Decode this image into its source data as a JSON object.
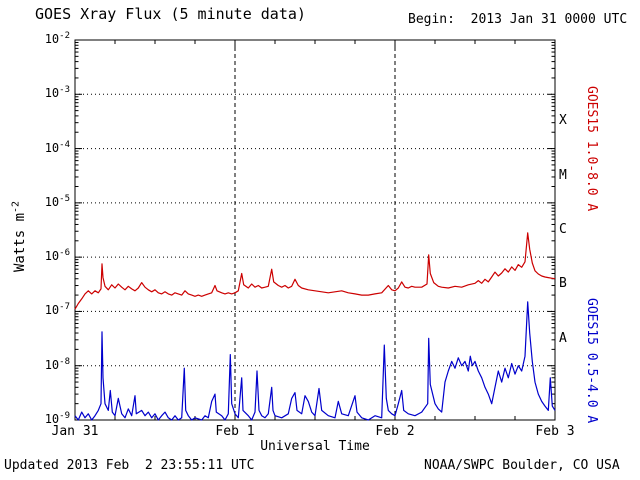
{
  "header": {
    "title": "GOES Xray Flux (5 minute data)",
    "begin": "Begin:  2013 Jan 31 0000 UTC"
  },
  "footer": {
    "updated": "Updated 2013 Feb  2 23:55:11 UTC",
    "source": "NOAA/SWPC Boulder, CO USA"
  },
  "chart_data": {
    "type": "line",
    "title": "GOES Xray Flux (5 minute data)",
    "xlabel": "Universal Time",
    "ylabel": "Watts m^-2",
    "ylabel_base": "Watts m",
    "ylabel_exp": "-2",
    "x_unit": "hours since 2013 Jan 31 0000 UTC",
    "xlim": [
      0,
      72
    ],
    "ylim_exp": [
      -9,
      -2
    ],
    "y_scale": "log10",
    "grid": {
      "horizontal": "dotted at each decade",
      "vertical": "dashed at day boundaries"
    },
    "x_ticks": [
      {
        "t": 0,
        "label": "Jan 31"
      },
      {
        "t": 24,
        "label": "Feb 1"
      },
      {
        "t": 48,
        "label": "Feb 2"
      },
      {
        "t": 72,
        "label": "Feb 3"
      }
    ],
    "y_ticks_exp": [
      -2,
      -3,
      -4,
      -5,
      -6,
      -7,
      -8,
      -9
    ],
    "flare_classes": [
      {
        "label": "X",
        "log_center": -3.5
      },
      {
        "label": "M",
        "log_center": -4.5
      },
      {
        "label": "C",
        "log_center": -5.5
      },
      {
        "label": "B",
        "log_center": -6.5
      },
      {
        "label": "A",
        "log_center": -7.5
      }
    ],
    "series": [
      {
        "name": "GOES15 1.0-8.0 A",
        "color": "#cc0000",
        "points": [
          [
            0,
            1.1e-07
          ],
          [
            0.5,
            1.4e-07
          ],
          [
            1,
            1.7e-07
          ],
          [
            1.5,
            2.1e-07
          ],
          [
            2,
            2.4e-07
          ],
          [
            2.5,
            2.1e-07
          ],
          [
            3,
            2.4e-07
          ],
          [
            3.5,
            2.2e-07
          ],
          [
            3.9,
            2.6e-07
          ],
          [
            4.05,
            7.5e-07
          ],
          [
            4.2,
            4.2e-07
          ],
          [
            4.5,
            2.9e-07
          ],
          [
            5,
            2.5e-07
          ],
          [
            5.5,
            3.1e-07
          ],
          [
            6,
            2.7e-07
          ],
          [
            6.5,
            3.2e-07
          ],
          [
            7,
            2.8e-07
          ],
          [
            7.5,
            2.5e-07
          ],
          [
            8,
            2.9e-07
          ],
          [
            8.5,
            2.6e-07
          ],
          [
            9,
            2.4e-07
          ],
          [
            9.5,
            2.7e-07
          ],
          [
            10,
            3.4e-07
          ],
          [
            10.5,
            2.8e-07
          ],
          [
            11,
            2.5e-07
          ],
          [
            11.5,
            2.3e-07
          ],
          [
            12,
            2.5e-07
          ],
          [
            12.5,
            2.2e-07
          ],
          [
            13,
            2.1e-07
          ],
          [
            13.5,
            2.3e-07
          ],
          [
            14,
            2.1e-07
          ],
          [
            14.5,
            2e-07
          ],
          [
            15,
            2.2e-07
          ],
          [
            15.5,
            2.1e-07
          ],
          [
            16,
            2e-07
          ],
          [
            16.5,
            2.4e-07
          ],
          [
            17,
            2.1e-07
          ],
          [
            17.5,
            2e-07
          ],
          [
            18,
            1.9e-07
          ],
          [
            18.5,
            2e-07
          ],
          [
            19,
            1.9e-07
          ],
          [
            19.5,
            2e-07
          ],
          [
            20,
            2.1e-07
          ],
          [
            20.5,
            2.2e-07
          ],
          [
            21,
            3e-07
          ],
          [
            21.3,
            2.4e-07
          ],
          [
            22,
            2.2e-07
          ],
          [
            22.5,
            2.1e-07
          ],
          [
            23,
            2.2e-07
          ],
          [
            23.5,
            2.1e-07
          ],
          [
            24,
            2.2e-07
          ],
          [
            24.5,
            2.4e-07
          ],
          [
            25,
            5e-07
          ],
          [
            25.3,
            3.1e-07
          ],
          [
            26,
            2.7e-07
          ],
          [
            26.5,
            3.2e-07
          ],
          [
            27,
            2.8e-07
          ],
          [
            27.5,
            3e-07
          ],
          [
            28,
            2.7e-07
          ],
          [
            28.5,
            2.8e-07
          ],
          [
            29,
            2.9e-07
          ],
          [
            29.5,
            6e-07
          ],
          [
            29.8,
            3.5e-07
          ],
          [
            30.5,
            3e-07
          ],
          [
            31,
            2.8e-07
          ],
          [
            31.5,
            3e-07
          ],
          [
            32,
            2.7e-07
          ],
          [
            32.5,
            2.9e-07
          ],
          [
            33,
            3.9e-07
          ],
          [
            33.5,
            3e-07
          ],
          [
            34,
            2.7e-07
          ],
          [
            35,
            2.5e-07
          ],
          [
            36,
            2.4e-07
          ],
          [
            37,
            2.3e-07
          ],
          [
            38,
            2.2e-07
          ],
          [
            39,
            2.3e-07
          ],
          [
            40,
            2.4e-07
          ],
          [
            41,
            2.2e-07
          ],
          [
            42,
            2.1e-07
          ],
          [
            43,
            2e-07
          ],
          [
            44,
            2e-07
          ],
          [
            45,
            2.1e-07
          ],
          [
            46,
            2.2e-07
          ],
          [
            47,
            3e-07
          ],
          [
            47.5,
            2.5e-07
          ],
          [
            48,
            2.4e-07
          ],
          [
            48.5,
            2.7e-07
          ],
          [
            49,
            3.5e-07
          ],
          [
            49.5,
            2.8e-07
          ],
          [
            50,
            2.7e-07
          ],
          [
            50.5,
            2.9e-07
          ],
          [
            51,
            2.8e-07
          ],
          [
            52,
            2.8e-07
          ],
          [
            52.8,
            3.2e-07
          ],
          [
            53.05,
            1.1e-06
          ],
          [
            53.3,
            5e-07
          ],
          [
            53.8,
            3.4e-07
          ],
          [
            54.5,
            2.9e-07
          ],
          [
            55,
            2.8e-07
          ],
          [
            56,
            2.7e-07
          ],
          [
            57,
            2.9e-07
          ],
          [
            58,
            2.8e-07
          ],
          [
            59,
            3.1e-07
          ],
          [
            60,
            3.3e-07
          ],
          [
            60.5,
            3.7e-07
          ],
          [
            61,
            3.3e-07
          ],
          [
            61.5,
            3.9e-07
          ],
          [
            62,
            3.5e-07
          ],
          [
            62.5,
            4.3e-07
          ],
          [
            63,
            5.3e-07
          ],
          [
            63.5,
            4.5e-07
          ],
          [
            64,
            5.1e-07
          ],
          [
            64.5,
            6.1e-07
          ],
          [
            65,
            5.3e-07
          ],
          [
            65.5,
            6.6e-07
          ],
          [
            66,
            5.7e-07
          ],
          [
            66.5,
            7.3e-07
          ],
          [
            67,
            6.5e-07
          ],
          [
            67.5,
            8.2e-07
          ],
          [
            67.9,
            2.8e-06
          ],
          [
            68.2,
            1.4e-06
          ],
          [
            68.6,
            7.8e-07
          ],
          [
            69,
            5.6e-07
          ],
          [
            69.5,
            4.9e-07
          ],
          [
            70,
            4.5e-07
          ],
          [
            70.5,
            4.3e-07
          ],
          [
            71,
            4.2e-07
          ],
          [
            71.5,
            4.1e-07
          ],
          [
            72,
            4e-07
          ]
        ]
      },
      {
        "name": "GOES15 0.5-4.0 A",
        "color": "#0000cc",
        "points": [
          [
            0,
            1.2e-09
          ],
          [
            0.5,
            1e-09
          ],
          [
            1,
            1.4e-09
          ],
          [
            1.5,
            1.1e-09
          ],
          [
            2,
            1.3e-09
          ],
          [
            2.5,
            1e-09
          ],
          [
            3,
            1.2e-09
          ],
          [
            3.5,
            1.5e-09
          ],
          [
            3.9,
            2e-09
          ],
          [
            4.05,
            4.2e-08
          ],
          [
            4.2,
            6e-09
          ],
          [
            4.5,
            2e-09
          ],
          [
            5,
            1.5e-09
          ],
          [
            5.3,
            3.5e-09
          ],
          [
            5.6,
            1.4e-09
          ],
          [
            6,
            1.2e-09
          ],
          [
            6.5,
            2.5e-09
          ],
          [
            7,
            1.3e-09
          ],
          [
            7.5,
            1.1e-09
          ],
          [
            8,
            1.6e-09
          ],
          [
            8.5,
            1.2e-09
          ],
          [
            9,
            2.8e-09
          ],
          [
            9.2,
            1.3e-09
          ],
          [
            10,
            1.5e-09
          ],
          [
            10.5,
            1.2e-09
          ],
          [
            11,
            1.4e-09
          ],
          [
            11.5,
            1.1e-09
          ],
          [
            12,
            1.3e-09
          ],
          [
            12.5,
            1e-09
          ],
          [
            13,
            1.2e-09
          ],
          [
            13.5,
            1.4e-09
          ],
          [
            14,
            1.1e-09
          ],
          [
            14.5,
            1e-09
          ],
          [
            15,
            1.2e-09
          ],
          [
            15.5,
            1e-09
          ],
          [
            16,
            1.1e-09
          ],
          [
            16.4,
            9e-09
          ],
          [
            16.6,
            1.5e-09
          ],
          [
            17,
            1.2e-09
          ],
          [
            17.5,
            1e-09
          ],
          [
            18,
            1.1e-09
          ],
          [
            19,
            1e-09
          ],
          [
            19.5,
            1.2e-09
          ],
          [
            20,
            1.1e-09
          ],
          [
            20.5,
            2.2e-09
          ],
          [
            21,
            3e-09
          ],
          [
            21.2,
            1.4e-09
          ],
          [
            22,
            1.2e-09
          ],
          [
            22.5,
            1e-09
          ],
          [
            23,
            1.3e-09
          ],
          [
            23.3,
            1.6e-08
          ],
          [
            23.5,
            2e-09
          ],
          [
            24,
            1.3e-09
          ],
          [
            24.5,
            1.1e-09
          ],
          [
            25,
            6e-09
          ],
          [
            25.2,
            1.5e-09
          ],
          [
            26,
            1.2e-09
          ],
          [
            26.5,
            1e-09
          ],
          [
            27,
            1.4e-09
          ],
          [
            27.3,
            8e-09
          ],
          [
            27.6,
            1.5e-09
          ],
          [
            28,
            1.2e-09
          ],
          [
            28.5,
            1.1e-09
          ],
          [
            29,
            1.3e-09
          ],
          [
            29.5,
            4e-09
          ],
          [
            29.7,
            1.5e-09
          ],
          [
            30,
            1.2e-09
          ],
          [
            31,
            1.1e-09
          ],
          [
            32,
            1.3e-09
          ],
          [
            32.5,
            2.5e-09
          ],
          [
            33,
            3.2e-09
          ],
          [
            33.3,
            1.5e-09
          ],
          [
            34,
            1.3e-09
          ],
          [
            34.5,
            2.8e-09
          ],
          [
            35,
            2.2e-09
          ],
          [
            35.5,
            1.4e-09
          ],
          [
            36,
            1.2e-09
          ],
          [
            36.6,
            3.8e-09
          ],
          [
            37,
            1.5e-09
          ],
          [
            38,
            1.2e-09
          ],
          [
            39,
            1.1e-09
          ],
          [
            39.5,
            2.2e-09
          ],
          [
            40,
            1.3e-09
          ],
          [
            41,
            1.2e-09
          ],
          [
            42,
            2.8e-09
          ],
          [
            42.3,
            1.4e-09
          ],
          [
            43,
            1.1e-09
          ],
          [
            44,
            1e-09
          ],
          [
            45,
            1.2e-09
          ],
          [
            46,
            1.1e-09
          ],
          [
            46.4,
            2.4e-08
          ],
          [
            46.7,
            2.5e-09
          ],
          [
            47,
            1.5e-09
          ],
          [
            47.5,
            1.3e-09
          ],
          [
            48,
            1.2e-09
          ],
          [
            48.5,
            2e-09
          ],
          [
            49,
            3.5e-09
          ],
          [
            49.3,
            1.5e-09
          ],
          [
            50,
            1.3e-09
          ],
          [
            51,
            1.2e-09
          ],
          [
            52,
            1.4e-09
          ],
          [
            52.9,
            2e-09
          ],
          [
            53.05,
            3.2e-08
          ],
          [
            53.3,
            4.5e-09
          ],
          [
            54,
            2e-09
          ],
          [
            54.5,
            1.6e-09
          ],
          [
            55,
            1.4e-09
          ],
          [
            55.5,
            5e-09
          ],
          [
            56,
            8e-09
          ],
          [
            56.5,
            1.2e-08
          ],
          [
            57,
            9e-09
          ],
          [
            57.5,
            1.4e-08
          ],
          [
            58,
            1e-08
          ],
          [
            58.5,
            1.2e-08
          ],
          [
            59,
            8e-09
          ],
          [
            59.3,
            1.5e-08
          ],
          [
            59.6,
            1e-08
          ],
          [
            60,
            1.2e-08
          ],
          [
            60.5,
            8e-09
          ],
          [
            61,
            6e-09
          ],
          [
            61.5,
            4e-09
          ],
          [
            62,
            3e-09
          ],
          [
            62.5,
            2e-09
          ],
          [
            63,
            4e-09
          ],
          [
            63.5,
            8e-09
          ],
          [
            64,
            5e-09
          ],
          [
            64.5,
            9e-09
          ],
          [
            65,
            6e-09
          ],
          [
            65.5,
            1.1e-08
          ],
          [
            66,
            7e-09
          ],
          [
            66.5,
            1e-08
          ],
          [
            67,
            8e-09
          ],
          [
            67.5,
            1.5e-08
          ],
          [
            67.9,
            1.5e-07
          ],
          [
            68.2,
            4e-08
          ],
          [
            68.6,
            1.2e-08
          ],
          [
            69,
            5e-09
          ],
          [
            69.5,
            3e-09
          ],
          [
            70,
            2.2e-09
          ],
          [
            70.5,
            1.8e-09
          ],
          [
            71,
            1.5e-09
          ],
          [
            71.3,
            6e-09
          ],
          [
            71.6,
            1.8e-09
          ],
          [
            72,
            1.5e-09
          ]
        ]
      }
    ]
  }
}
